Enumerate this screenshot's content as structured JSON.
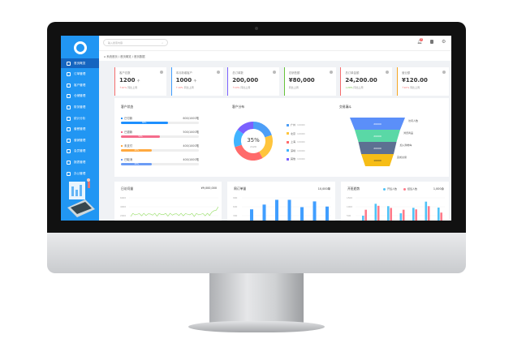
{
  "sidebar": {
    "items": [
      {
        "label": "首页概览",
        "active": true
      },
      {
        "label": "订单管理"
      },
      {
        "label": "客户管理"
      },
      {
        "label": "仓储管理"
      },
      {
        "label": "财务管理"
      },
      {
        "label": "统计分析"
      },
      {
        "label": "套餐管理"
      },
      {
        "label": "营销管理"
      },
      {
        "label": "会员管理"
      },
      {
        "label": "报表管理"
      },
      {
        "label": "办公管理"
      }
    ]
  },
  "header": {
    "search_placeholder": "输入搜索内容",
    "notification_count": "3"
  },
  "breadcrumb": [
    "系统首页",
    "/ 首页概览",
    "/ 首页数据"
  ],
  "stats": [
    {
      "label": "客户总数",
      "value": "1200",
      "unit": "个",
      "trend": "↑10%",
      "note": "同比上周",
      "color": "#f56c6c"
    },
    {
      "label": "本月新增客户",
      "value": "1000",
      "unit": "个",
      "trend": "↑10%",
      "note": "同比上周",
      "color": "#409eff"
    },
    {
      "label": "总订单数",
      "value": "200,000",
      "unit": "",
      "trend": "↑10%",
      "note": "同比上周",
      "color": "#7b61ff"
    },
    {
      "label": "总销售额",
      "value": "¥80,000",
      "unit": "",
      "trend": "",
      "note": "同比上周",
      "color": "#67c23a"
    },
    {
      "label": "总订单金额",
      "value": "24,200.00",
      "unit": "",
      "trend": "↓20%",
      "note": "同比上周",
      "color": "#f56c6c"
    },
    {
      "label": "营业额",
      "value": "¥120.00",
      "unit": "",
      "trend": "↑10%",
      "note": "同比上周",
      "color": "#f5a623"
    }
  ],
  "progress": {
    "title": "客户状态",
    "items": [
      {
        "label": "已付款",
        "value": "600/1000笔",
        "percent": 60,
        "pct_label": "60%",
        "color": "#1e90ff"
      },
      {
        "label": "已退款",
        "value": "500/1000笔",
        "percent": 50,
        "pct_label": "50%",
        "color": "#f56c8c"
      },
      {
        "label": "未支付",
        "value": "400/1000笔",
        "percent": 40,
        "pct_label": "40%",
        "color": "#ffa940"
      },
      {
        "label": "已取消",
        "value": "400/1000笔",
        "percent": 40,
        "pct_label": "40%",
        "color": "#6c9cf5"
      }
    ]
  },
  "donut": {
    "title": "客户分布",
    "center": "35%",
    "center_sub": "2129",
    "segments": [
      {
        "label": "广州",
        "value": "10000",
        "share": 20,
        "color": "#4d9ef7"
      },
      {
        "label": "北京",
        "value": "10000",
        "share": 22,
        "color": "#ffc53d"
      },
      {
        "label": "上海",
        "value": "10000",
        "share": 28,
        "color": "#ff6b6b"
      },
      {
        "label": "深圳",
        "value": "10000",
        "share": 15,
        "color": "#40b4ff"
      },
      {
        "label": "其他",
        "value": "10000",
        "share": 15,
        "color": "#7b61ff"
      }
    ]
  },
  "funnel": {
    "title": "交易漏斗",
    "stages": [
      {
        "value": "20000",
        "label": "访问人数",
        "color": "#5b8ff9"
      },
      {
        "value": "20000",
        "label": "浏览商品",
        "color": "#5ad8a6"
      },
      {
        "value": "20000",
        "label": "加入购物车",
        "color": "#5d7092"
      },
      {
        "value": "10000",
        "label": "完成交易",
        "color": "#f6bd16"
      }
    ]
  },
  "visits": {
    "title": "日访问量",
    "total": "¥9,000,000",
    "yticks": [
      "6000",
      "4000",
      "2000"
    ]
  },
  "weekly": {
    "title": "周订单量",
    "total": "10,000单",
    "yticks": [
      "900",
      "600",
      "300"
    ],
    "values": [
      320,
      560,
      800,
      800,
      430,
      720,
      460
    ]
  },
  "trend": {
    "title": "开班趋势",
    "total": "1,000余",
    "legend": [
      "开班人数",
      "结班人数"
    ],
    "colors": [
      "#4fc3f7",
      "#ff7b8a"
    ],
    "yticks": [
      "1500",
      "1000",
      "500"
    ],
    "s1": [
      0,
      1000,
      800,
      200,
      660,
      1180,
      680
    ],
    "s2": [
      500,
      830,
      650,
      500,
      530,
      800,
      260
    ]
  }
}
